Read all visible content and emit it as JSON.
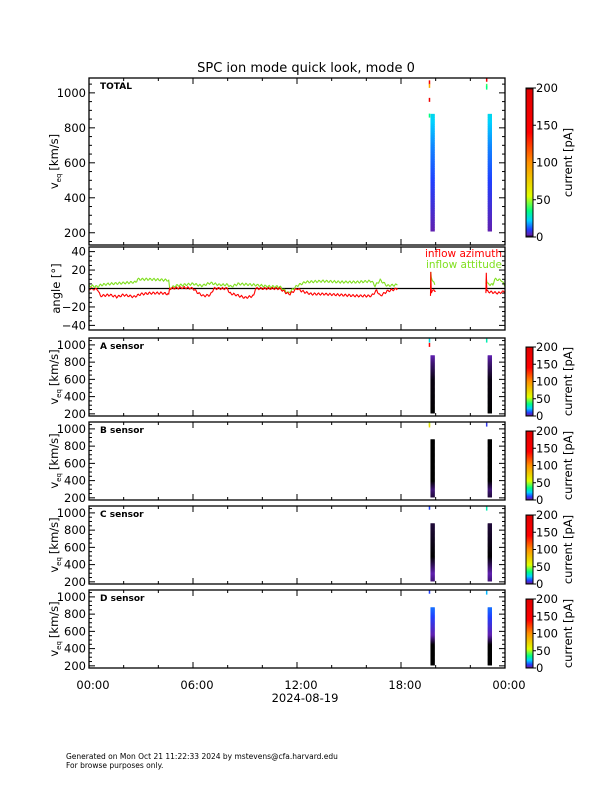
{
  "title": "SPC ion mode quick look, mode 0",
  "x_axis": {
    "tick_labels": [
      "00:00",
      "06:00",
      "12:00",
      "18:00",
      "00:00"
    ],
    "tick_hours": [
      0,
      6,
      12,
      18,
      24
    ],
    "date_label": "2024-08-19"
  },
  "footer": {
    "line1": "Generated on Mon Oct 21 11:22:33 2024 by mstevens@cfa.harvard.edu",
    "line2": "For browse purposes only."
  },
  "colorbar": {
    "label": "current [pA]",
    "range": [
      0,
      200
    ],
    "total_ticks": [
      "0",
      "50",
      "100",
      "150",
      "200"
    ],
    "colormap": [
      [
        0,
        "#000000"
      ],
      [
        3,
        "#6020b0"
      ],
      [
        10,
        "#2040ff"
      ],
      [
        22,
        "#00d0ff"
      ],
      [
        35,
        "#00ff80"
      ],
      [
        55,
        "#e0ff00"
      ],
      [
        100,
        "#ff9000"
      ],
      [
        140,
        "#ff0000"
      ],
      [
        197,
        "#e00000"
      ],
      [
        200,
        "#000000"
      ]
    ]
  },
  "chart_data": [
    {
      "type": "heatmap",
      "panel": "TOTAL",
      "ylabel_main": "v",
      "ylabel_sub": "eq",
      "ylabel_unit": "[km/s]",
      "ylim": [
        130,
        1085
      ],
      "y_ticks": [
        "200",
        "400",
        "600",
        "800",
        "1000"
      ],
      "y_tick_values": [
        200,
        400,
        600,
        800,
        1000
      ],
      "xlim_hours": [
        0,
        24
      ],
      "bands": [
        {
          "start_h": 19.7,
          "end_h": 19.95
        },
        {
          "start_h": 23.0,
          "end_h": 23.25
        }
      ],
      "velocity_range": [
        210,
        880
      ],
      "current_profile": [
        [
          210,
          3
        ],
        [
          300,
          5
        ],
        [
          500,
          10
        ],
        [
          700,
          16
        ],
        [
          880,
          24
        ]
      ],
      "sparse_points": [
        [
          19.6,
          1060,
          160
        ],
        [
          19.6,
          1040,
          90
        ],
        [
          19.6,
          960,
          170
        ],
        [
          19.6,
          870,
          35
        ],
        [
          22.9,
          1075,
          170
        ],
        [
          22.9,
          1040,
          40
        ],
        [
          22.9,
          1030,
          35
        ]
      ]
    },
    {
      "type": "line",
      "panel": "angle",
      "ylabel": "angle [°]",
      "ylim": [
        -45,
        45
      ],
      "y_ticks": [
        "40",
        "20",
        "0",
        "−20",
        "−40"
      ],
      "y_tick_values": [
        40,
        20,
        0,
        -20,
        -40
      ],
      "zero_line": true,
      "series": [
        {
          "name": "inflow azimuth",
          "color": "#ff0000",
          "points": [
            [
              0,
              0
            ],
            [
              0.5,
              -1
            ],
            [
              0.65,
              -8
            ],
            [
              1.2,
              -7
            ],
            [
              1.6,
              -9
            ],
            [
              2,
              -7
            ],
            [
              2.6,
              -9
            ],
            [
              3,
              -6
            ],
            [
              3.6,
              -5
            ],
            [
              4.2,
              -5
            ],
            [
              4.6,
              -6
            ],
            [
              4.65,
              0
            ],
            [
              5.5,
              1
            ],
            [
              6,
              0
            ],
            [
              6.3,
              -5
            ],
            [
              6.6,
              -8
            ],
            [
              7,
              -7
            ],
            [
              7.2,
              0
            ],
            [
              8,
              0
            ],
            [
              8.1,
              -5
            ],
            [
              8.5,
              -7
            ],
            [
              9,
              -10
            ],
            [
              9.5,
              -8
            ],
            [
              9.6,
              0
            ],
            [
              10.5,
              0
            ],
            [
              11,
              0
            ],
            [
              11.4,
              -5
            ],
            [
              11.6,
              -6
            ],
            [
              12,
              0
            ],
            [
              12.3,
              -3
            ],
            [
              12.8,
              -6
            ],
            [
              13.5,
              -6
            ],
            [
              14.5,
              -7
            ],
            [
              15.5,
              -8
            ],
            [
              16.3,
              -8
            ],
            [
              16.6,
              -2
            ],
            [
              16.8,
              -8
            ],
            [
              17.2,
              -3
            ],
            [
              17.8,
              0
            ]
          ],
          "spikes": [
            [
              [
                19.7,
                -8
              ],
              [
                19.72,
                18
              ],
              [
                19.75,
                -5
              ],
              [
                19.8,
                -2
              ],
              [
                20.0,
                -3
              ]
            ],
            [
              [
                22.9,
                -5
              ],
              [
                22.92,
                17
              ],
              [
                22.95,
                -3
              ],
              [
                23.2,
                -4
              ],
              [
                23.6,
                -5
              ],
              [
                24,
                -3
              ]
            ]
          ]
        },
        {
          "name": "inflow attitude",
          "color": "#80e020",
          "points": [
            [
              0,
              3
            ],
            [
              0.5,
              2
            ],
            [
              0.7,
              4
            ],
            [
              1.2,
              5
            ],
            [
              2,
              6
            ],
            [
              2.7,
              7
            ],
            [
              2.8,
              10
            ],
            [
              3.5,
              10
            ],
            [
              4.6,
              9
            ],
            [
              4.65,
              0
            ],
            [
              5,
              3
            ],
            [
              5.5,
              4
            ],
            [
              6,
              5
            ],
            [
              6.5,
              3
            ],
            [
              7,
              6
            ],
            [
              7.5,
              4
            ],
            [
              8,
              4
            ],
            [
              8.2,
              2
            ],
            [
              8.6,
              5
            ],
            [
              9.5,
              4
            ],
            [
              10,
              3
            ],
            [
              10.5,
              2
            ],
            [
              11,
              2
            ],
            [
              11.5,
              -5
            ],
            [
              12,
              3
            ],
            [
              12.5,
              7
            ],
            [
              13.5,
              8
            ],
            [
              14.5,
              7
            ],
            [
              15.5,
              7
            ],
            [
              16.3,
              8
            ],
            [
              16.5,
              3
            ],
            [
              16.8,
              9
            ],
            [
              17.2,
              3
            ],
            [
              17.8,
              4
            ]
          ],
          "spikes": [
            [
              [
                19.7,
                0
              ],
              [
                19.72,
                18
              ],
              [
                19.75,
                12
              ],
              [
                19.8,
                10
              ],
              [
                19.95,
                4
              ]
            ],
            [
              [
                22.9,
                5
              ],
              [
                22.92,
                10
              ],
              [
                23.0,
                5
              ],
              [
                23.3,
                4
              ],
              [
                23.4,
                10
              ],
              [
                23.8,
                9
              ],
              [
                24,
                2
              ]
            ]
          ]
        }
      ]
    },
    {
      "type": "heatmap",
      "panel": "A sensor",
      "ylim": [
        175,
        1080
      ],
      "y_ticks": [
        "200",
        "400",
        "600",
        "800",
        "1000"
      ],
      "y_tick_values": [
        200,
        400,
        600,
        800,
        1000
      ],
      "color_ticks": [
        "0",
        "50",
        "100",
        "150",
        "200"
      ],
      "bands": [
        {
          "start_h": 19.7,
          "end_h": 19.95
        },
        {
          "start_h": 23.0,
          "end_h": 23.25
        }
      ],
      "velocity_range": [
        210,
        880
      ],
      "current_profile": [
        [
          210,
          0
        ],
        [
          600,
          0.3
        ],
        [
          800,
          2
        ],
        [
          880,
          3
        ]
      ],
      "sparse_points": [
        [
          19.6,
          1050,
          25
        ],
        [
          19.6,
          1000,
          150
        ],
        [
          22.9,
          1050,
          30
        ]
      ]
    },
    {
      "type": "heatmap",
      "panel": "B sensor",
      "ylim": [
        175,
        1080
      ],
      "y_ticks": [
        "200",
        "400",
        "600",
        "800",
        "1000"
      ],
      "y_tick_values": [
        200,
        400,
        600,
        800,
        1000
      ],
      "color_ticks": [
        "0",
        "50",
        "100",
        "150",
        "200"
      ],
      "bands": [
        {
          "start_h": 19.7,
          "end_h": 19.95
        },
        {
          "start_h": 23.0,
          "end_h": 23.25
        }
      ],
      "velocity_range": [
        210,
        880
      ],
      "current_profile": [
        [
          210,
          1
        ],
        [
          300,
          2
        ],
        [
          400,
          0
        ],
        [
          880,
          0
        ]
      ],
      "sparse_points": [
        [
          19.6,
          1060,
          50
        ],
        [
          19.6,
          1040,
          70
        ],
        [
          22.9,
          1050,
          8
        ]
      ]
    },
    {
      "type": "heatmap",
      "panel": "C sensor",
      "ylim": [
        175,
        1080
      ],
      "y_ticks": [
        "200",
        "400",
        "600",
        "800",
        "1000"
      ],
      "y_tick_values": [
        200,
        400,
        600,
        800,
        1000
      ],
      "color_ticks": [
        "0",
        "50",
        "100",
        "150",
        "200"
      ],
      "bands": [
        {
          "start_h": 19.7,
          "end_h": 19.95
        },
        {
          "start_h": 23.0,
          "end_h": 23.25
        }
      ],
      "velocity_range": [
        210,
        880
      ],
      "current_profile": [
        [
          210,
          2
        ],
        [
          300,
          3
        ],
        [
          500,
          0
        ],
        [
          880,
          1
        ]
      ],
      "sparse_points": [
        [
          19.6,
          1060,
          10
        ],
        [
          22.9,
          1050,
          30
        ]
      ]
    },
    {
      "type": "heatmap",
      "panel": "D sensor",
      "ylim": [
        175,
        1080
      ],
      "y_ticks": [
        "200",
        "400",
        "600",
        "800",
        "1000"
      ],
      "y_tick_values": [
        200,
        400,
        600,
        800,
        1000
      ],
      "color_ticks": [
        "0",
        "50",
        "100",
        "150",
        "200"
      ],
      "bands": [
        {
          "start_h": 19.7,
          "end_h": 19.95
        },
        {
          "start_h": 23.0,
          "end_h": 23.25
        }
      ],
      "velocity_range": [
        210,
        880
      ],
      "current_profile": [
        [
          210,
          0
        ],
        [
          450,
          0
        ],
        [
          600,
          4
        ],
        [
          750,
          9
        ],
        [
          880,
          14
        ]
      ],
      "sparse_points": [
        [
          19.6,
          1060,
          10
        ],
        [
          22.9,
          1050,
          20
        ]
      ]
    }
  ]
}
